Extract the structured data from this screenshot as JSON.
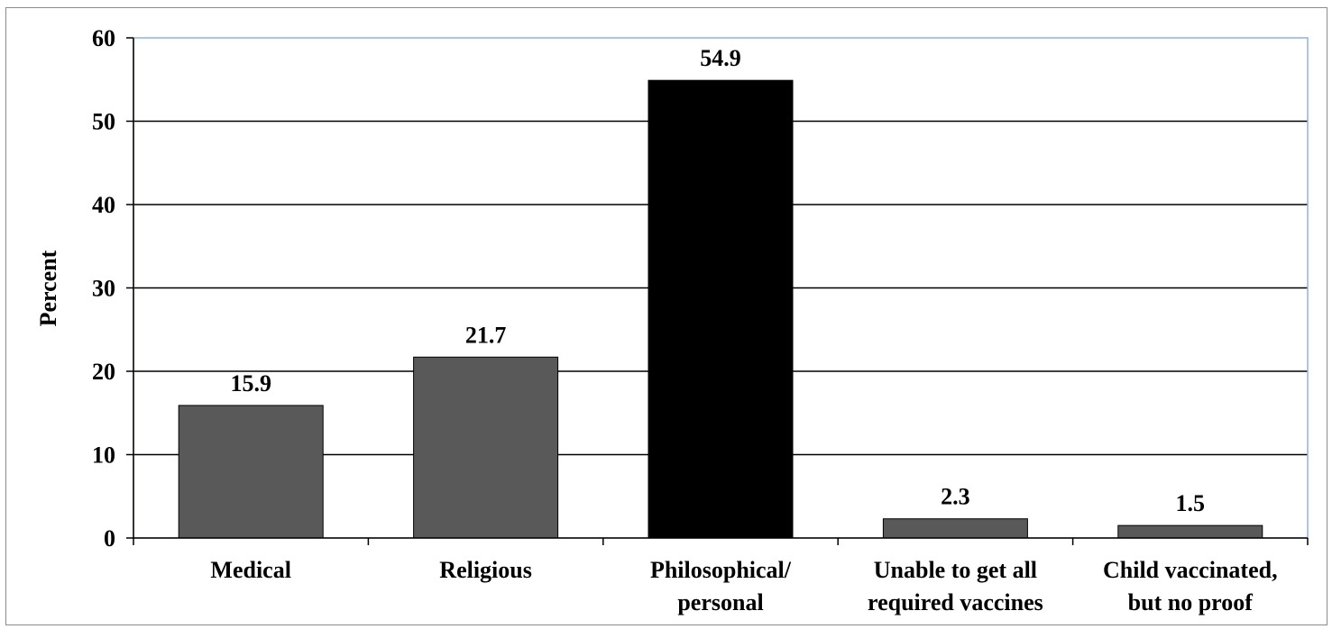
{
  "chart_data": {
    "type": "bar",
    "title": "",
    "xlabel": "",
    "ylabel": "Percent",
    "ylim": [
      0,
      60
    ],
    "yticks": [
      0,
      10,
      20,
      30,
      40,
      50,
      60
    ],
    "grid": true,
    "categories": [
      [
        "Medical"
      ],
      [
        "Religious"
      ],
      [
        "Philosophical/",
        "personal"
      ],
      [
        "Unable to get all",
        "required vaccines"
      ],
      [
        "Child vaccinated,",
        "but no proof"
      ]
    ],
    "values": [
      15.9,
      21.7,
      54.9,
      2.3,
      1.5
    ],
    "value_labels": [
      "15.9",
      "21.7",
      "54.9",
      "2.3",
      "1.5"
    ],
    "bar_colors": [
      "#595959",
      "#595959",
      "#000000",
      "#595959",
      "#595959"
    ],
    "gridline_color": "#000000",
    "plot_border_color": "#8fb4d9"
  }
}
